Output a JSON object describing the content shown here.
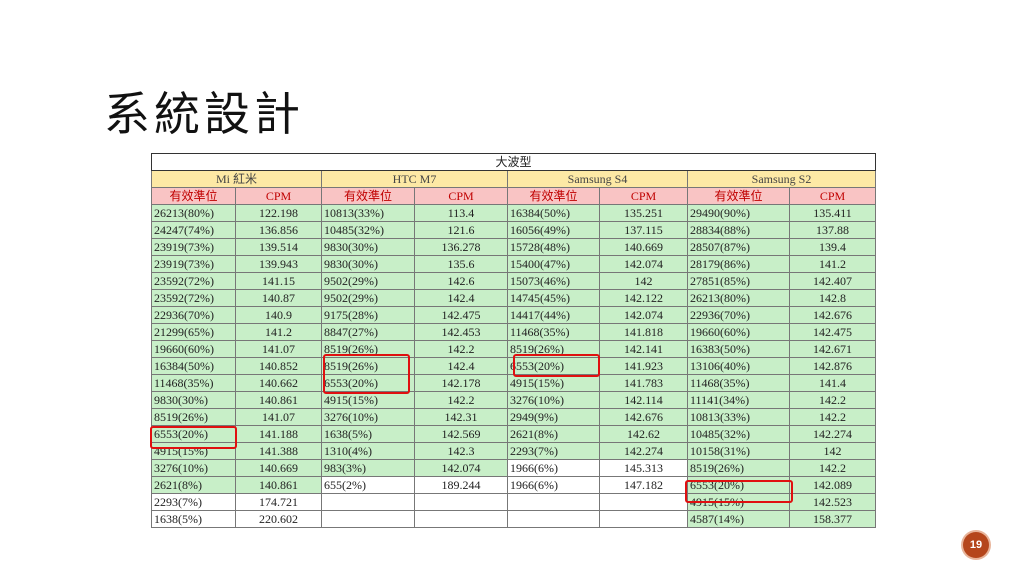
{
  "slide": {
    "title": "系統設計",
    "page_number": "19"
  },
  "table": {
    "title": "大波型",
    "devices": [
      "Mi 紅米",
      "HTC M7",
      "Samsung S4",
      "Samsung S2"
    ],
    "headers": [
      "有效準位",
      "CPM",
      "有效準位",
      "CPM",
      "有效準位",
      "CPM",
      "有效準位",
      "CPM"
    ],
    "rows": [
      [
        "26213(80%)",
        "122.198",
        "10813(33%)",
        "113.4",
        "16384(50%)",
        "135.251",
        "29490(90%)",
        "135.411"
      ],
      [
        "24247(74%)",
        "136.856",
        "10485(32%)",
        "121.6",
        "16056(49%)",
        "137.115",
        "28834(88%)",
        "137.88"
      ],
      [
        "23919(73%)",
        "139.514",
        "9830(30%)",
        "136.278",
        "15728(48%)",
        "140.669",
        "28507(87%)",
        "139.4"
      ],
      [
        "23919(73%)",
        "139.943",
        "9830(30%)",
        "135.6",
        "15400(47%)",
        "142.074",
        "28179(86%)",
        "141.2"
      ],
      [
        "23592(72%)",
        "141.15",
        "9502(29%)",
        "142.6",
        "15073(46%)",
        "142",
        "27851(85%)",
        "142.407"
      ],
      [
        "23592(72%)",
        "140.87",
        "9502(29%)",
        "142.4",
        "14745(45%)",
        "142.122",
        "26213(80%)",
        "142.8"
      ],
      [
        "22936(70%)",
        "140.9",
        "9175(28%)",
        "142.475",
        "14417(44%)",
        "142.074",
        "22936(70%)",
        "142.676"
      ],
      [
        "21299(65%)",
        "141.2",
        "8847(27%)",
        "142.453",
        "11468(35%)",
        "141.818",
        "19660(60%)",
        "142.475"
      ],
      [
        "19660(60%)",
        "141.07",
        "8519(26%)",
        "142.2",
        "8519(26%)",
        "142.141",
        "16383(50%)",
        "142.671"
      ],
      [
        "16384(50%)",
        "140.852",
        "8519(26%)",
        "142.4",
        "6553(20%)",
        "141.923",
        "13106(40%)",
        "142.876"
      ],
      [
        "11468(35%)",
        "140.662",
        "6553(20%)",
        "142.178",
        "4915(15%)",
        "141.783",
        "11468(35%)",
        "141.4"
      ],
      [
        "9830(30%)",
        "140.861",
        "4915(15%)",
        "142.2",
        "3276(10%)",
        "142.114",
        "11141(34%)",
        "142.2"
      ],
      [
        "8519(26%)",
        "141.07",
        "3276(10%)",
        "142.31",
        "2949(9%)",
        "142.676",
        "10813(33%)",
        "142.2"
      ],
      [
        "6553(20%)",
        "141.188",
        "1638(5%)",
        "142.569",
        "2621(8%)",
        "142.62",
        "10485(32%)",
        "142.274"
      ],
      [
        "4915(15%)",
        "141.388",
        "1310(4%)",
        "142.3",
        "2293(7%)",
        "142.274",
        "10158(31%)",
        "142"
      ],
      [
        "3276(10%)",
        "140.669",
        "983(3%)",
        "142.074",
        "1966(6%)",
        "145.313",
        "8519(26%)",
        "142.2"
      ],
      [
        "2621(8%)",
        "140.861",
        "655(2%)",
        "189.244",
        "1966(6%)",
        "147.182",
        "6553(20%)",
        "142.089"
      ],
      [
        "2293(7%)",
        "174.721",
        "",
        "",
        "",
        "",
        "4915(15%)",
        "142.523"
      ],
      [
        "1638(5%)",
        "220.602",
        "",
        "",
        "",
        "",
        "4587(14%)",
        "158.377"
      ]
    ]
  },
  "colors": {
    "green": "#c8efc8",
    "device_header": "#fde9a5",
    "col_header": "#f9c4c4",
    "highlight": "#e01010"
  }
}
